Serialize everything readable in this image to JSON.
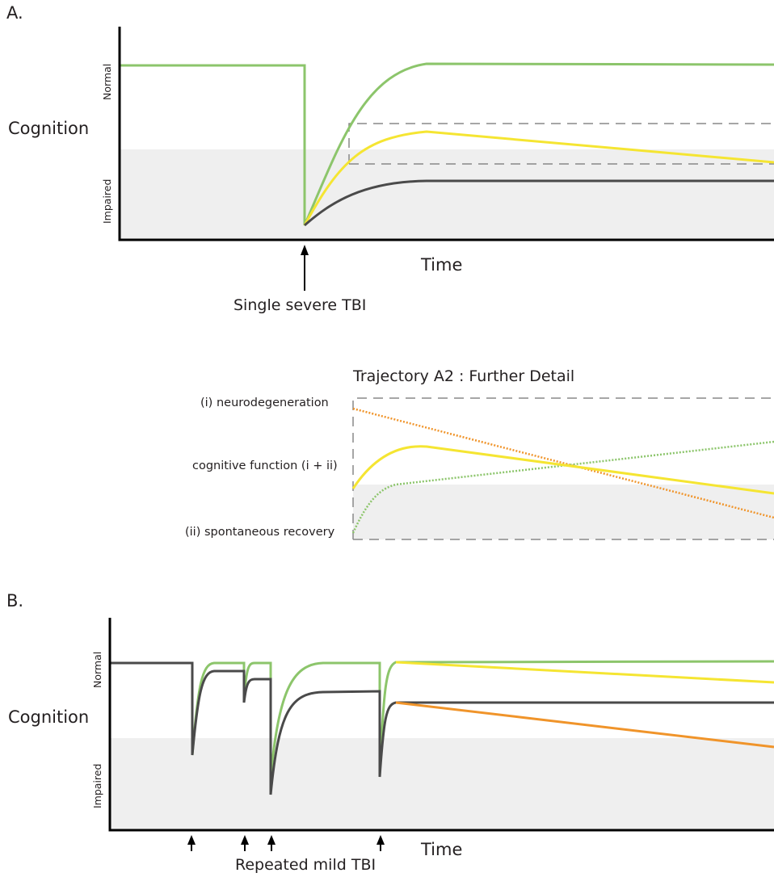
{
  "panel_a": {
    "label": "A.",
    "y_label": "Cognition",
    "y_tick_normal": "Normal",
    "y_tick_impaired": "Impaired",
    "x_label": "Time",
    "event_label": "Single severe TBI"
  },
  "detail": {
    "title": "Trajectory A2 : Further Detail",
    "label_neuro": "(i) neurodegeneration",
    "label_cog": "cognitive function (i + ii)",
    "label_recovery": "(ii) spontaneous recovery"
  },
  "panel_b": {
    "label": "B.",
    "y_label": "Cognition",
    "y_tick_normal": "Normal",
    "y_tick_impaired": "Impaired",
    "x_label": "Time",
    "event_label": "Repeated mild TBI"
  },
  "colors": {
    "green": "#8cc56b",
    "yellow": "#f5e532",
    "dark": "#4a4a4a",
    "orange": "#f0942a",
    "impaired_band": "#efefef",
    "dashed_box": "#888888"
  }
}
